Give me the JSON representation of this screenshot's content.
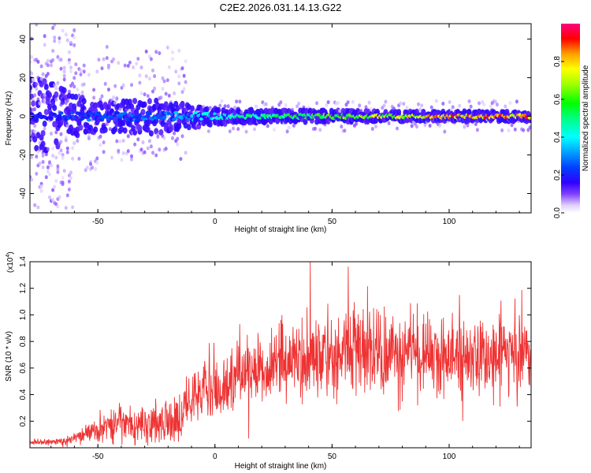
{
  "chart_data": [
    {
      "type": "heatmap",
      "title": "C2E2.2026.031.14.13.G22",
      "xlabel": "Height of straight line (km)",
      "ylabel": "Frequency (Hz)",
      "xlim": [
        -79,
        135
      ],
      "ylim": [
        -50,
        48
      ],
      "xticks": [
        -50,
        0,
        50,
        100
      ],
      "yticks": [
        -40,
        -20,
        0,
        20,
        40
      ],
      "colorbar": {
        "label": "Normalized spectral amplitude",
        "range": [
          0,
          1
        ],
        "ticks": [
          "0.0",
          "0.2",
          "0.4",
          "0.6",
          "0.8"
        ],
        "colors": [
          "#ffffff",
          "#a070ff",
          "#4000ff",
          "#0000ff",
          "#00c0ff",
          "#00ffff",
          "#00ff80",
          "#00ff00",
          "#a0ff00",
          "#ffff00",
          "#ffa000",
          "#ff0000",
          "#ff0080"
        ]
      },
      "ridge_frequency_hz": 0,
      "description_points": [
        {
          "x": -75,
          "peak_amplitude": 0.2,
          "spread_hz": 40
        },
        {
          "x": -50,
          "peak_amplitude": 0.3,
          "spread_hz": 15
        },
        {
          "x": -25,
          "peak_amplitude": 0.3,
          "spread_hz": 18
        },
        {
          "x": 0,
          "peak_amplitude": 0.45,
          "spread_hz": 8
        },
        {
          "x": 25,
          "peak_amplitude": 0.55,
          "spread_hz": 6
        },
        {
          "x": 50,
          "peak_amplitude": 0.65,
          "spread_hz": 6
        },
        {
          "x": 75,
          "peak_amplitude": 0.75,
          "spread_hz": 5
        },
        {
          "x": 100,
          "peak_amplitude": 0.9,
          "spread_hz": 5
        },
        {
          "x": 125,
          "peak_amplitude": 0.9,
          "spread_hz": 5
        }
      ]
    },
    {
      "type": "line",
      "xlabel": "Height of straight line (km)",
      "ylabel": "SNR (10 * v/v)",
      "yscale_label": "(x10",
      "yscale_exp": "4",
      "yscale_close": ")",
      "xlim": [
        -79,
        135
      ],
      "ylim": [
        0,
        1.4
      ],
      "xticks": [
        -50,
        0,
        50,
        100
      ],
      "yticks": [
        "0.2",
        "0.4",
        "0.6",
        "0.8",
        "1.0",
        "1.2",
        "1.4"
      ],
      "color": "#ee3333",
      "x": [
        -75,
        -65,
        -55,
        -45,
        -35,
        -25,
        -15,
        -10,
        -5,
        0,
        5,
        10,
        15,
        20,
        25,
        30,
        35,
        40,
        45,
        50,
        55,
        60,
        65,
        70,
        75,
        80,
        85,
        90,
        95,
        100,
        105,
        110,
        115,
        120,
        125,
        130,
        134
      ],
      "values": [
        0.04,
        0.05,
        0.1,
        0.16,
        0.19,
        0.17,
        0.24,
        0.35,
        0.4,
        0.45,
        0.5,
        0.56,
        0.6,
        0.62,
        0.64,
        0.66,
        0.68,
        0.68,
        0.7,
        0.7,
        0.72,
        0.72,
        0.7,
        0.72,
        0.72,
        0.68,
        0.7,
        0.7,
        0.68,
        0.7,
        0.68,
        0.7,
        0.7,
        0.7,
        0.7,
        0.68,
        0.7
      ],
      "noise_amplitude": [
        0.02,
        0.03,
        0.06,
        0.12,
        0.14,
        0.14,
        0.16,
        0.18,
        0.2,
        0.22,
        0.24,
        0.24,
        0.24,
        0.25,
        0.26,
        0.28,
        0.3,
        0.3,
        0.32,
        0.32,
        0.32,
        0.32,
        0.3,
        0.3,
        0.3,
        0.28,
        0.28,
        0.28,
        0.28,
        0.28,
        0.27,
        0.27,
        0.27,
        0.27,
        0.27,
        0.27,
        0.27
      ]
    }
  ]
}
